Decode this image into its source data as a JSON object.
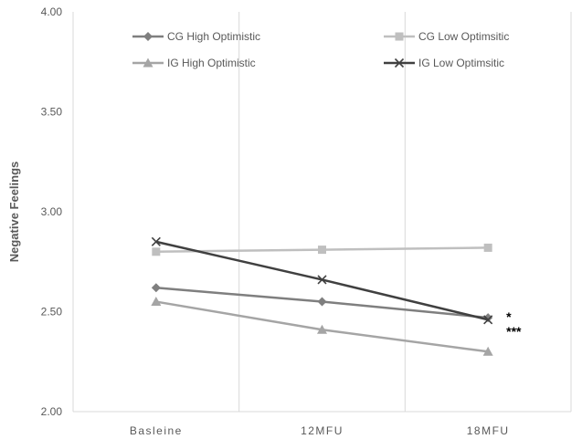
{
  "chart_data": {
    "type": "line",
    "title": "",
    "xlabel": "",
    "ylabel": "Negative Feelings",
    "categories": [
      "Basleine",
      "12MFU",
      "18MFU"
    ],
    "ylim": [
      2.0,
      4.0
    ],
    "yticks": [
      "2.00",
      "2.50",
      "3.00",
      "3.50",
      "4.00"
    ],
    "grid": "vertical",
    "legend": "top, inside plot",
    "series": [
      {
        "name": "CG High Optimistic",
        "values": [
          2.62,
          2.55,
          2.47
        ],
        "color": "#7f7f7f",
        "marker": "diamond"
      },
      {
        "name": "CG Low Optimsitic",
        "values": [
          2.8,
          2.81,
          2.82
        ],
        "color": "#bfbfbf",
        "marker": "square"
      },
      {
        "name": "IG High Optimistic",
        "values": [
          2.55,
          2.41,
          2.3
        ],
        "color": "#a5a5a5",
        "marker": "triangle"
      },
      {
        "name": "IG Low Optimsitic",
        "values": [
          2.85,
          2.66,
          2.46
        ],
        "color": "#404040",
        "marker": "x"
      }
    ],
    "annotations": [
      "*",
      "***"
    ]
  }
}
